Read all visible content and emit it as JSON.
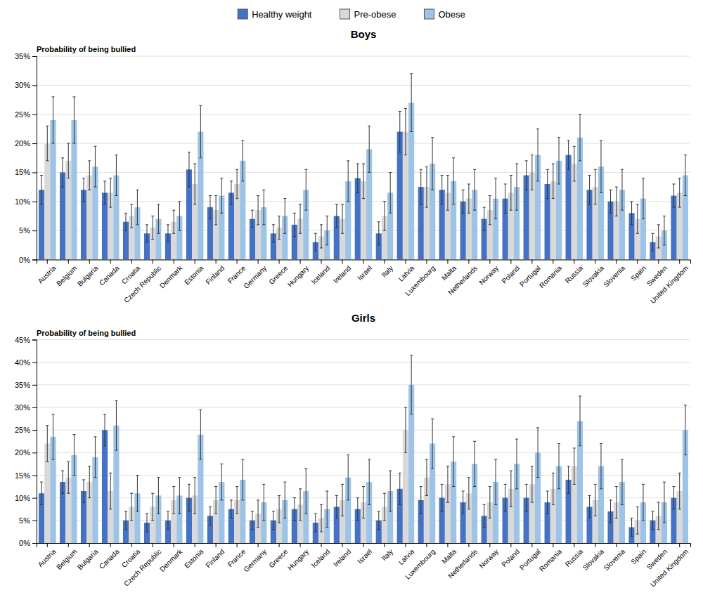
{
  "chart_data": [
    {
      "type": "bar",
      "title": "Boys",
      "ylabel": "Probability of being bullied",
      "legend": "top",
      "grid": true,
      "categories": [
        "Austria",
        "Belgium",
        "Bulgaria",
        "Canada",
        "Croatia",
        "Czech Republic",
        "Denmark",
        "Estonia",
        "Finland",
        "France",
        "Germany",
        "Greece",
        "Hungary",
        "Iceland",
        "Ireland",
        "Israel",
        "Italy",
        "Latvia",
        "Luxembourg",
        "Malta",
        "Netherlands",
        "Norway",
        "Poland",
        "Portugal",
        "Romania",
        "Russia",
        "Slovakia",
        "Slovenia",
        "Spain",
        "Sweden",
        "United Kingdom"
      ],
      "series": [
        {
          "name": "Healthy weight",
          "color": "#4472C4",
          "values": [
            12.0,
            15.0,
            12.0,
            11.5,
            6.5,
            4.5,
            4.5,
            15.5,
            9.0,
            11.5,
            7.0,
            4.5,
            6.0,
            3.0,
            7.5,
            14.0,
            4.5,
            22.0,
            12.5,
            12.0,
            10.0,
            7.0,
            10.5,
            14.5,
            13.0,
            18.0,
            12.0,
            10.0,
            8.0,
            3.0,
            11.0
          ],
          "errors": [
            2.5,
            2.5,
            2.0,
            2.0,
            1.5,
            1.5,
            1.5,
            3.0,
            2.0,
            2.0,
            1.5,
            1.5,
            2.0,
            1.5,
            2.0,
            2.5,
            2.0,
            3.5,
            3.0,
            2.5,
            2.0,
            2.0,
            2.5,
            2.5,
            2.5,
            2.5,
            2.5,
            2.0,
            2.0,
            1.5,
            2.0
          ]
        },
        {
          "name": "Pre-obese",
          "color": "#D9D9D9",
          "values": [
            20.0,
            17.0,
            14.5,
            11.5,
            7.5,
            5.5,
            6.5,
            13.0,
            8.5,
            13.0,
            8.5,
            5.5,
            7.0,
            4.0,
            7.0,
            13.5,
            7.5,
            22.0,
            12.5,
            11.5,
            10.5,
            8.5,
            11.5,
            15.0,
            13.5,
            16.5,
            12.5,
            10.0,
            7.0,
            4.0,
            11.5
          ],
          "errors": [
            3.0,
            3.0,
            2.5,
            2.5,
            2.0,
            2.0,
            2.0,
            3.5,
            2.5,
            2.5,
            2.5,
            2.0,
            2.5,
            2.0,
            2.5,
            3.0,
            2.5,
            4.0,
            3.5,
            3.0,
            2.5,
            2.5,
            3.0,
            3.0,
            3.0,
            3.0,
            3.0,
            2.5,
            2.5,
            2.0,
            2.5
          ]
        },
        {
          "name": "Obese",
          "color": "#9DC3E6",
          "values": [
            24.0,
            24.0,
            16.0,
            14.5,
            9.0,
            7.0,
            7.5,
            22.0,
            11.0,
            17.0,
            9.0,
            7.5,
            12.0,
            5.0,
            13.5,
            19.0,
            11.5,
            27.0,
            16.5,
            13.5,
            12.0,
            10.5,
            12.5,
            18.0,
            17.0,
            21.0,
            16.0,
            12.0,
            10.5,
            5.0,
            14.5
          ],
          "errors": [
            4.0,
            4.0,
            3.5,
            3.5,
            3.0,
            2.5,
            2.5,
            4.5,
            3.0,
            3.5,
            3.0,
            3.0,
            3.5,
            2.5,
            3.5,
            4.0,
            3.5,
            5.0,
            4.5,
            4.0,
            3.5,
            3.5,
            4.0,
            4.5,
            4.0,
            4.0,
            4.5,
            3.5,
            3.5,
            2.5,
            3.5
          ]
        }
      ],
      "ylim": [
        0,
        35
      ],
      "yticks": [
        {
          "value": 0,
          "label": "0%"
        },
        {
          "value": 5,
          "label": "5%"
        },
        {
          "value": 10,
          "label": "10%"
        },
        {
          "value": 15,
          "label": "15%"
        },
        {
          "value": 20,
          "label": "20%"
        },
        {
          "value": 25,
          "label": "25%"
        },
        {
          "value": 30,
          "label": "30%"
        },
        {
          "value": 35,
          "label": "35%"
        }
      ]
    },
    {
      "type": "bar",
      "title": "Girls",
      "ylabel": "Probability of being bullied",
      "grid": true,
      "categories": [
        "Austria",
        "Belgium",
        "Bulgaria",
        "Canada",
        "Croatia",
        "Czech Republic",
        "Denmark",
        "Estonia",
        "Finland",
        "France",
        "Germany",
        "Greece",
        "Hungary",
        "Iceland",
        "Ireland",
        "Israel",
        "Italy",
        "Latvia",
        "Luxembourg",
        "Malta",
        "Netherlands",
        "Norway",
        "Poland",
        "Portugal",
        "Romania",
        "Russia",
        "Slovakia",
        "Slovenia",
        "Spain",
        "Sweden",
        "United Kingdom"
      ],
      "series": [
        {
          "name": "Healthy weight",
          "color": "#4472C4",
          "values": [
            11.0,
            13.5,
            11.5,
            25.0,
            5.0,
            4.5,
            5.0,
            10.0,
            6.0,
            7.5,
            5.0,
            5.0,
            7.5,
            4.5,
            8.0,
            7.5,
            5.0,
            12.0,
            9.5,
            10.0,
            9.0,
            6.0,
            10.0,
            10.0,
            9.0,
            14.0,
            8.0,
            7.0,
            3.5,
            5.0,
            10.0
          ],
          "errors": [
            2.5,
            2.5,
            2.5,
            3.5,
            2.0,
            2.0,
            2.0,
            3.0,
            2.0,
            2.0,
            2.0,
            2.0,
            2.5,
            2.0,
            2.5,
            2.5,
            2.0,
            3.5,
            3.0,
            3.0,
            2.5,
            2.5,
            3.0,
            3.0,
            2.5,
            3.0,
            2.5,
            2.5,
            2.0,
            2.0,
            2.5
          ]
        },
        {
          "name": "Pre-obese",
          "color": "#D9D9D9",
          "values": [
            22.0,
            14.5,
            13.5,
            11.5,
            8.0,
            8.0,
            9.5,
            10.5,
            9.5,
            9.5,
            6.5,
            7.5,
            8.5,
            5.5,
            9.5,
            9.0,
            8.0,
            25.0,
            14.5,
            13.0,
            11.0,
            9.0,
            12.0,
            13.0,
            12.0,
            17.0,
            9.5,
            9.0,
            5.0,
            6.0,
            11.5
          ],
          "errors": [
            4.0,
            3.5,
            3.5,
            4.0,
            3.0,
            3.0,
            3.0,
            4.0,
            3.0,
            3.0,
            3.0,
            3.0,
            3.5,
            3.0,
            3.5,
            3.5,
            3.0,
            5.0,
            4.0,
            4.0,
            3.5,
            3.5,
            4.0,
            4.0,
            3.5,
            4.0,
            3.5,
            3.5,
            3.0,
            3.0,
            4.0
          ]
        },
        {
          "name": "Obese",
          "color": "#9DC3E6",
          "values": [
            23.5,
            19.5,
            19.0,
            26.0,
            11.0,
            10.5,
            10.5,
            24.0,
            13.5,
            14.0,
            9.0,
            9.5,
            11.5,
            7.5,
            14.5,
            13.5,
            11.5,
            35.0,
            22.0,
            18.0,
            17.5,
            13.5,
            17.5,
            20.0,
            17.0,
            27.0,
            17.0,
            13.5,
            9.0,
            9.0,
            25.0
          ],
          "errors": [
            5.0,
            4.5,
            4.5,
            5.5,
            4.0,
            4.0,
            4.0,
            5.5,
            4.0,
            4.5,
            4.0,
            4.0,
            5.0,
            4.0,
            5.0,
            5.0,
            4.5,
            6.5,
            5.5,
            5.5,
            5.0,
            5.0,
            5.5,
            5.5,
            5.0,
            5.5,
            5.0,
            5.0,
            4.0,
            4.5,
            5.5
          ]
        }
      ],
      "ylim": [
        0,
        45
      ],
      "yticks": [
        {
          "value": 0,
          "label": "0%"
        },
        {
          "value": 5,
          "label": "5%"
        },
        {
          "value": 10,
          "label": "10%"
        },
        {
          "value": 15,
          "label": "15%"
        },
        {
          "value": 20,
          "label": "20%"
        },
        {
          "value": 25,
          "label": "25%"
        },
        {
          "value": 30,
          "label": "30%"
        },
        {
          "value": 35,
          "label": "35%"
        },
        {
          "value": 40,
          "label": "40%"
        },
        {
          "value": 45,
          "label": "45%"
        }
      ]
    }
  ]
}
